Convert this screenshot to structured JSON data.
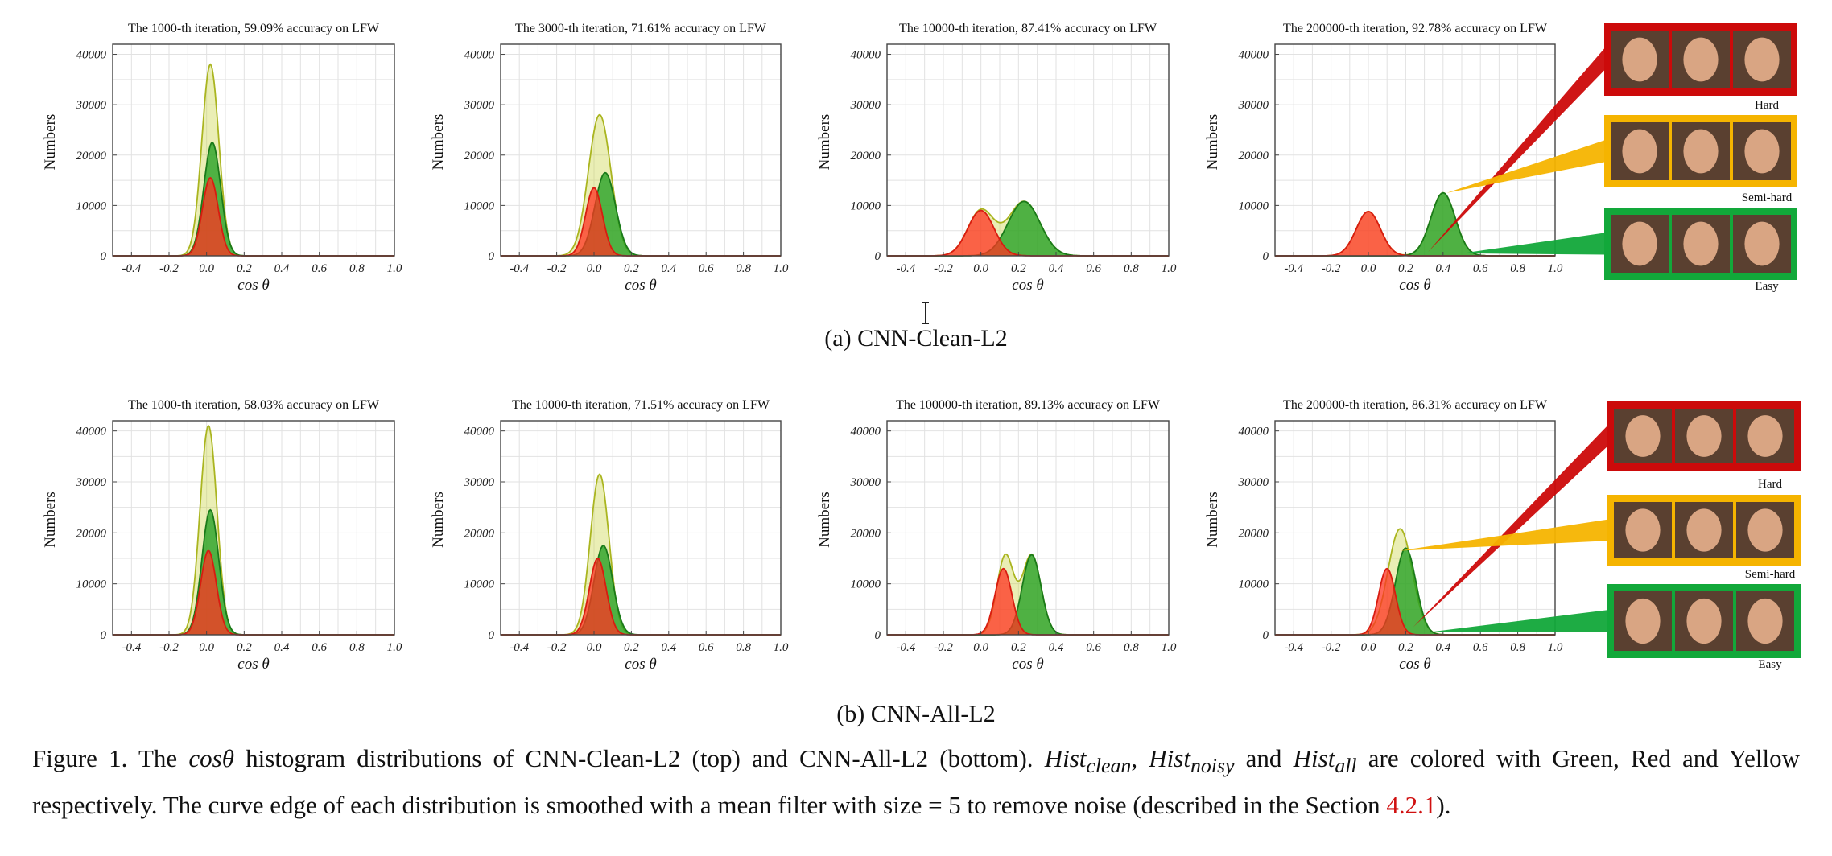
{
  "colors": {
    "clean": "#22a022",
    "noisy": "#ff3322",
    "all": "#c9d33c",
    "hard": "#cc0a0a",
    "semihard": "#f5b400",
    "easy": "#12a83a"
  },
  "rows": [
    {
      "sublabel": "(a)  CNN-Clean-L2",
      "panels": [
        {
          "title": "The 1000-th iteration, 59.09% accuracy on LFW",
          "ylabel": "Numbers",
          "xlabel": "cos θ",
          "chart_data": {
            "type": "area",
            "x_range": [
              -0.5,
              1.0
            ],
            "y_range": [
              0,
              42000
            ],
            "x_ticks": [
              "-0.4",
              "-0.2",
              "0.0",
              "0.2",
              "0.4",
              "0.6",
              "0.8",
              "1.0"
            ],
            "y_ticks": [
              "0",
              "10000",
              "20000",
              "30000",
              "40000"
            ],
            "series": [
              {
                "color_key": "all",
                "peaks": [
                  {
                    "mu": 0.02,
                    "sigma": 0.045,
                    "height": 38000
                  }
                ]
              },
              {
                "color_key": "clean",
                "peaks": [
                  {
                    "mu": 0.03,
                    "sigma": 0.045,
                    "height": 22500
                  }
                ]
              },
              {
                "color_key": "noisy",
                "peaks": [
                  {
                    "mu": 0.02,
                    "sigma": 0.042,
                    "height": 15500
                  }
                ]
              }
            ]
          }
        },
        {
          "title": "The 3000-th iteration, 71.61% accuracy on LFW",
          "ylabel": "Numbers",
          "xlabel": "cos θ",
          "chart_data": {
            "type": "area",
            "x_range": [
              -0.5,
              1.0
            ],
            "y_range": [
              0,
              42000
            ],
            "x_ticks": [
              "-0.4",
              "-0.2",
              "0.0",
              "0.2",
              "0.4",
              "0.6",
              "0.8",
              "1.0"
            ],
            "y_ticks": [
              "0",
              "10000",
              "20000",
              "30000",
              "40000"
            ],
            "series": [
              {
                "color_key": "all",
                "peaks": [
                  {
                    "mu": 0.03,
                    "sigma": 0.06,
                    "height": 28000
                  }
                ]
              },
              {
                "color_key": "clean",
                "peaks": [
                  {
                    "mu": 0.06,
                    "sigma": 0.055,
                    "height": 16500
                  }
                ]
              },
              {
                "color_key": "noisy",
                "peaks": [
                  {
                    "mu": 0.0,
                    "sigma": 0.045,
                    "height": 13500
                  }
                ]
              }
            ]
          }
        },
        {
          "title": "The 10000-th iteration, 87.41% accuracy on LFW",
          "ylabel": "Numbers",
          "xlabel": "cos θ",
          "chart_data": {
            "type": "area",
            "x_range": [
              -0.5,
              1.0
            ],
            "y_range": [
              0,
              42000
            ],
            "x_ticks": [
              "-0.4",
              "-0.2",
              "0.0",
              "0.2",
              "0.4",
              "0.6",
              "0.8",
              "1.0"
            ],
            "y_ticks": [
              "0",
              "10000",
              "20000",
              "30000",
              "40000"
            ],
            "series": [
              {
                "color_key": "all",
                "peaks": [
                  {
                    "mu": 0.0,
                    "sigma": 0.07,
                    "height": 9000
                  },
                  {
                    "mu": 0.23,
                    "sigma": 0.085,
                    "height": 10800
                  }
                ]
              },
              {
                "color_key": "clean",
                "peaks": [
                  {
                    "mu": 0.23,
                    "sigma": 0.085,
                    "height": 10800
                  }
                ]
              },
              {
                "color_key": "noisy",
                "peaks": [
                  {
                    "mu": 0.0,
                    "sigma": 0.07,
                    "height": 9000
                  }
                ]
              }
            ]
          }
        },
        {
          "title": "The 200000-th iteration, 92.78% accuracy on LFW",
          "ylabel": "Numbers",
          "xlabel": "cos θ",
          "chart_data": {
            "type": "area",
            "x_range": [
              -0.5,
              1.0
            ],
            "y_range": [
              0,
              42000
            ],
            "x_ticks": [
              "-0.4",
              "-0.2",
              "0.0",
              "0.2",
              "0.4",
              "0.6",
              "0.8",
              "1.0"
            ],
            "y_ticks": [
              "0",
              "10000",
              "20000",
              "30000",
              "40000"
            ],
            "series": [
              {
                "color_key": "all",
                "peaks": [
                  {
                    "mu": 0.0,
                    "sigma": 0.065,
                    "height": 8800
                  },
                  {
                    "mu": 0.4,
                    "sigma": 0.065,
                    "height": 12500
                  }
                ]
              },
              {
                "color_key": "clean",
                "peaks": [
                  {
                    "mu": 0.4,
                    "sigma": 0.065,
                    "height": 12500
                  }
                ]
              },
              {
                "color_key": "noisy",
                "peaks": [
                  {
                    "mu": 0.0,
                    "sigma": 0.065,
                    "height": 8800
                  }
                ]
              }
            ]
          }
        }
      ],
      "boxes": [
        {
          "label": "Hard",
          "color_key": "hard"
        },
        {
          "label": "Semi-hard",
          "color_key": "semihard"
        },
        {
          "label": "Easy",
          "color_key": "easy"
        }
      ]
    },
    {
      "sublabel": "(b)  CNN-All-L2",
      "panels": [
        {
          "title": "The 1000-th iteration, 58.03% accuracy on LFW",
          "ylabel": "Numbers",
          "xlabel": "cos θ",
          "chart_data": {
            "type": "area",
            "x_range": [
              -0.5,
              1.0
            ],
            "y_range": [
              0,
              42000
            ],
            "x_ticks": [
              "-0.4",
              "-0.2",
              "0.0",
              "0.2",
              "0.4",
              "0.6",
              "0.8",
              "1.0"
            ],
            "y_ticks": [
              "0",
              "10000",
              "20000",
              "30000",
              "40000"
            ],
            "series": [
              {
                "color_key": "all",
                "peaks": [
                  {
                    "mu": 0.01,
                    "sigma": 0.045,
                    "height": 41000
                  }
                ]
              },
              {
                "color_key": "clean",
                "peaks": [
                  {
                    "mu": 0.02,
                    "sigma": 0.045,
                    "height": 24500
                  }
                ]
              },
              {
                "color_key": "noisy",
                "peaks": [
                  {
                    "mu": 0.01,
                    "sigma": 0.042,
                    "height": 16500
                  }
                ]
              }
            ]
          }
        },
        {
          "title": "The 10000-th iteration, 71.51% accuracy on LFW",
          "ylabel": "Numbers",
          "xlabel": "cos θ",
          "chart_data": {
            "type": "area",
            "x_range": [
              -0.5,
              1.0
            ],
            "y_range": [
              0,
              42000
            ],
            "x_ticks": [
              "-0.4",
              "-0.2",
              "0.0",
              "0.2",
              "0.4",
              "0.6",
              "0.8",
              "1.0"
            ],
            "y_ticks": [
              "0",
              "10000",
              "20000",
              "30000",
              "40000"
            ],
            "series": [
              {
                "color_key": "all",
                "peaks": [
                  {
                    "mu": 0.03,
                    "sigma": 0.05,
                    "height": 31500
                  }
                ]
              },
              {
                "color_key": "clean",
                "peaks": [
                  {
                    "mu": 0.05,
                    "sigma": 0.05,
                    "height": 17500
                  }
                ]
              },
              {
                "color_key": "noisy",
                "peaks": [
                  {
                    "mu": 0.02,
                    "sigma": 0.045,
                    "height": 15000
                  }
                ]
              }
            ]
          }
        },
        {
          "title": "The 100000-th iteration, 89.13% accuracy on LFW",
          "ylabel": "Numbers",
          "xlabel": "cos θ",
          "chart_data": {
            "type": "area",
            "x_range": [
              -0.5,
              1.0
            ],
            "y_range": [
              0,
              42000
            ],
            "x_ticks": [
              "-0.4",
              "-0.2",
              "0.0",
              "0.2",
              "0.4",
              "0.6",
              "0.8",
              "1.0"
            ],
            "y_ticks": [
              "0",
              "10000",
              "20000",
              "30000",
              "40000"
            ],
            "series": [
              {
                "color_key": "all",
                "peaks": [
                  {
                    "mu": 0.13,
                    "sigma": 0.045,
                    "height": 15500
                  },
                  {
                    "mu": 0.27,
                    "sigma": 0.05,
                    "height": 15700
                  }
                ]
              },
              {
                "color_key": "clean",
                "peaks": [
                  {
                    "mu": 0.27,
                    "sigma": 0.05,
                    "height": 15700
                  }
                ]
              },
              {
                "color_key": "noisy",
                "peaks": [
                  {
                    "mu": 0.12,
                    "sigma": 0.045,
                    "height": 13000
                  }
                ]
              }
            ]
          }
        },
        {
          "title": "The 200000-th iteration, 86.31% accuracy on LFW",
          "ylabel": "Numbers",
          "xlabel": "cos θ",
          "chart_data": {
            "type": "area",
            "x_range": [
              -0.5,
              1.0
            ],
            "y_range": [
              0,
              42000
            ],
            "x_ticks": [
              "-0.4",
              "-0.2",
              "0.0",
              "0.2",
              "0.4",
              "0.6",
              "0.8",
              "1.0"
            ],
            "y_ticks": [
              "0",
              "10000",
              "20000",
              "30000",
              "40000"
            ],
            "series": [
              {
                "color_key": "all",
                "peaks": [
                  {
                    "mu": 0.17,
                    "sigma": 0.065,
                    "height": 20800
                  }
                ]
              },
              {
                "color_key": "clean",
                "peaks": [
                  {
                    "mu": 0.2,
                    "sigma": 0.055,
                    "height": 17000
                  }
                ]
              },
              {
                "color_key": "noisy",
                "peaks": [
                  {
                    "mu": 0.1,
                    "sigma": 0.045,
                    "height": 13000
                  }
                ]
              }
            ]
          }
        }
      ],
      "boxes": [
        {
          "label": "Hard",
          "color_key": "hard"
        },
        {
          "label": "Semi-hard",
          "color_key": "semihard"
        },
        {
          "label": "Easy",
          "color_key": "easy"
        }
      ]
    }
  ],
  "caption": {
    "t1": "Figure 1. The ",
    "t2": "cosθ",
    "t3": " histogram distributions of CNN-Clean-L2 (top) and CNN-All-L2 (bottom). ",
    "t4": "Hist",
    "t5": "clean",
    "t6": ", ",
    "t7": "Hist",
    "t8": "noisy",
    "t9": " and ",
    "t10": "Hist",
    "t11": "all",
    "t12": " are colored with Green, Red and Yellow respectively.  The curve edge of each distribution is smoothed with a mean filter with size = 5 to remove noise (described in the Section ",
    "ref": "4.2.1",
    "t13": ")."
  }
}
